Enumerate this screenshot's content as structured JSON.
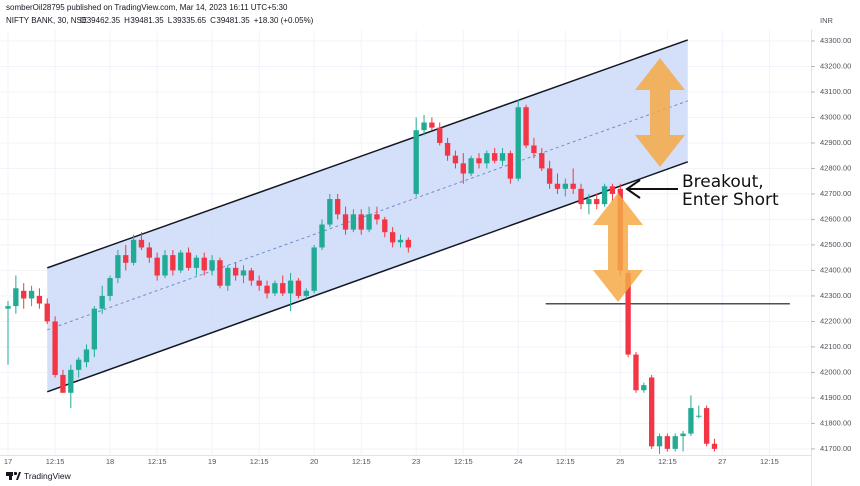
{
  "header": {
    "publisher": "somberOil28795 published on TradingView.com, Mar 14, 2023 16:11 UTC+5:30",
    "symbol": "NIFTY BANK, 30, NSE",
    "quote_labels": [
      "O",
      "H",
      "L",
      "C"
    ],
    "quote_values": [
      "39462.35",
      "39481.35",
      "39335.65",
      "39481.35"
    ],
    "change": "+18.30 (+0.05%)"
  },
  "footer": "TradingView",
  "chart_data": {
    "type": "candlestick",
    "y_unit": "INR",
    "up_color": "#22ab94",
    "down_color": "#f23645",
    "grid": true,
    "xlim": [
      -1.02,
      102.17
    ],
    "xticks": [
      {
        "value": 0,
        "label": "17"
      },
      {
        "value": 6,
        "label": "12:15"
      },
      {
        "value": 13,
        "label": "18"
      },
      {
        "value": 19,
        "label": "12:15"
      },
      {
        "value": 26,
        "label": "19"
      },
      {
        "value": 32,
        "label": "12:15"
      },
      {
        "value": 39,
        "label": "20"
      },
      {
        "value": 45,
        "label": "12:15"
      },
      {
        "value": 52,
        "label": "23"
      },
      {
        "value": 58,
        "label": "12:15"
      },
      {
        "value": 65,
        "label": "24"
      },
      {
        "value": 71,
        "label": "12:15"
      },
      {
        "value": 78,
        "label": "25"
      },
      {
        "value": 84,
        "label": "12:15"
      },
      {
        "value": 91,
        "label": "27"
      },
      {
        "value": 97,
        "label": "12:15"
      }
    ],
    "ylim": [
      41676,
      43343
    ],
    "yticks": [
      {
        "value": 41700,
        "label": "41700.00"
      },
      {
        "value": 41800,
        "label": "41800.00"
      },
      {
        "value": 41900,
        "label": "41900.00"
      },
      {
        "value": 42000,
        "label": "42000.00"
      },
      {
        "value": 42100,
        "label": "42100.00"
      },
      {
        "value": 42200,
        "label": "42200.00"
      },
      {
        "value": 42300,
        "label": "42300.00"
      },
      {
        "value": 42400,
        "label": "42400.00"
      },
      {
        "value": 42500,
        "label": "42500.00"
      },
      {
        "value": 42600,
        "label": "42600.00"
      },
      {
        "value": 42700,
        "label": "42700.00"
      },
      {
        "value": 42800,
        "label": "42800.00"
      },
      {
        "value": 42900,
        "label": "42900.00"
      },
      {
        "value": 43000,
        "label": "43000.00"
      },
      {
        "value": 43100,
        "label": "43100.00"
      },
      {
        "value": 43200,
        "label": "43200.00"
      },
      {
        "value": 43300,
        "label": "43300.00"
      }
    ],
    "open": [
      42250,
      42260,
      42320,
      42290,
      42300,
      42270,
      42200,
      41990,
      41920,
      42010,
      42040,
      42090,
      42250,
      42300,
      42370,
      42460,
      42430,
      42520,
      42490,
      42450,
      42380,
      42460,
      42400,
      42470,
      42410,
      42450,
      42400,
      42440,
      42340,
      42410,
      42380,
      42400,
      42360,
      42340,
      42310,
      42350,
      42310,
      42360,
      42300,
      42320,
      42490,
      42580,
      42680,
      42620,
      42560,
      42620,
      42560,
      42620,
      42600,
      42550,
      42510,
      42520,
      42700,
      42950,
      42980,
      42960,
      42900,
      42850,
      42820,
      42780,
      42840,
      42820,
      42860,
      42830,
      42860,
      42760,
      43040,
      42890,
      42860,
      42800,
      42740,
      42720,
      42740,
      42720,
      42660,
      42680,
      42660,
      42730,
      42720,
      42390,
      42070,
      41930,
      41980,
      41710,
      41750,
      41700,
      41750,
      41760,
      41830,
      41860,
      41720
    ],
    "high": [
      42280,
      42380,
      42350,
      42340,
      42330,
      42290,
      42220,
      42010,
      42030,
      42060,
      42110,
      42260,
      42340,
      42380,
      42480,
      42500,
      42540,
      42550,
      42510,
      42470,
      42480,
      42480,
      42480,
      42490,
      42460,
      42470,
      42460,
      42450,
      42420,
      42430,
      42420,
      42410,
      42380,
      42360,
      42360,
      42380,
      42390,
      42370,
      42330,
      42500,
      42600,
      42700,
      42700,
      42650,
      42640,
      42640,
      42650,
      42650,
      42610,
      42570,
      42540,
      42530,
      43000,
      43010,
      43000,
      42980,
      42920,
      42870,
      42860,
      42850,
      42860,
      42870,
      42880,
      42880,
      42870,
      43070,
      43050,
      42920,
      42880,
      42830,
      42780,
      42760,
      42800,
      42740,
      42700,
      42700,
      42740,
      42740,
      42740,
      42400,
      42080,
      41960,
      41990,
      41760,
      41760,
      41760,
      41770,
      41910,
      41870,
      41870,
      41740
    ],
    "low": [
      42030,
      42230,
      42250,
      42260,
      42250,
      42190,
      41980,
      41920,
      41860,
      41980,
      42020,
      42060,
      42230,
      42280,
      42350,
      42400,
      42420,
      42480,
      42430,
      42360,
      42370,
      42380,
      42390,
      42400,
      42380,
      42380,
      42380,
      42330,
      42320,
      42360,
      42350,
      42340,
      42320,
      42290,
      42300,
      42300,
      42240,
      42290,
      42290,
      42310,
      42480,
      42570,
      42600,
      42540,
      42550,
      42540,
      42550,
      42580,
      42530,
      42490,
      42490,
      42470,
      42690,
      42930,
      42950,
      42890,
      42830,
      42800,
      42740,
      42770,
      42800,
      42800,
      42820,
      42810,
      42740,
      42750,
      42880,
      42840,
      42790,
      42720,
      42700,
      42690,
      42700,
      42640,
      42620,
      42640,
      42650,
      42670,
      42380,
      42060,
      41920,
      41920,
      41700,
      41680,
      41690,
      41690,
      41690,
      41750,
      41820,
      41710,
      41690
    ],
    "close": [
      42260,
      42330,
      42290,
      42320,
      42270,
      42200,
      41990,
      41920,
      42010,
      42050,
      42090,
      42250,
      42300,
      42370,
      42460,
      42430,
      42520,
      42490,
      42450,
      42380,
      42460,
      42400,
      42470,
      42410,
      42450,
      42400,
      42440,
      42340,
      42410,
      42380,
      42400,
      42360,
      42340,
      42310,
      42350,
      42310,
      42360,
      42300,
      42320,
      42490,
      42580,
      42680,
      42620,
      42560,
      42620,
      42560,
      42620,
      42600,
      42550,
      42510,
      42520,
      42490,
      42950,
      42980,
      42960,
      42900,
      42850,
      42820,
      42780,
      42840,
      42820,
      42860,
      42830,
      42860,
      42760,
      43040,
      42890,
      42860,
      42800,
      42740,
      42720,
      42740,
      42720,
      42660,
      42680,
      42660,
      42730,
      42700,
      42400,
      42070,
      41930,
      41950,
      41710,
      41750,
      41700,
      41750,
      41760,
      41860,
      41830,
      41720,
      41700
    ],
    "channel": {
      "upper": [
        [
          5,
          42410
        ],
        [
          86.6,
          43304
        ]
      ],
      "lower": [
        [
          5,
          41924
        ],
        [
          86.6,
          42826
        ]
      ],
      "fill": "#cfdcf8"
    },
    "level": {
      "value": 42269,
      "from": 68.5,
      "to": 99.6
    },
    "annotation": [
      "Breakout,",
      "Enter Short"
    ]
  }
}
